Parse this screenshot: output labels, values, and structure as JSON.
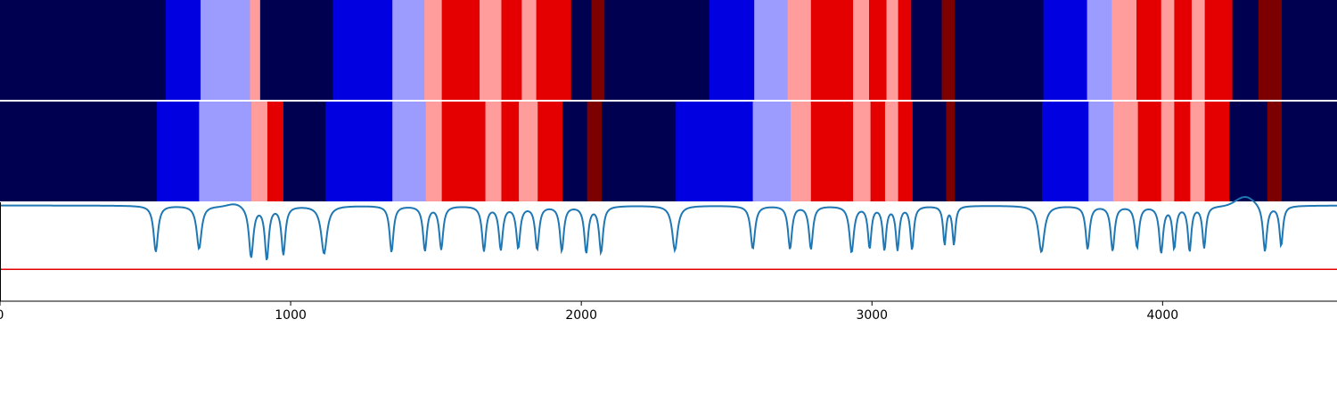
{
  "colors": {
    "dark_navy": "#000050",
    "blue": "#0000e0",
    "light_blue": "#9c9cff",
    "light_red": "#ff9c9c",
    "red": "#e40000",
    "dark_red": "#7c0000",
    "line": "#1f77b4",
    "threshold": "#e00000"
  },
  "chart_data": {
    "type": "heatmap",
    "xlim": [
      0,
      4600
    ],
    "x_ticks": [
      0,
      1000,
      2000,
      3000,
      4000
    ],
    "x_tick_labels": [
      "0",
      "1000",
      "2000",
      "3000",
      "4000"
    ],
    "legend": "none",
    "grid": false,
    "segment_tracks": [
      {
        "segments": [
          [
            0,
            570,
            "dark_navy"
          ],
          [
            570,
            690,
            "blue"
          ],
          [
            690,
            860,
            "light_blue"
          ],
          [
            860,
            895,
            "light_red"
          ],
          [
            895,
            1145,
            "dark_navy"
          ],
          [
            1145,
            1350,
            "blue"
          ],
          [
            1350,
            1460,
            "light_blue"
          ],
          [
            1460,
            1520,
            "light_red"
          ],
          [
            1520,
            1650,
            "red"
          ],
          [
            1650,
            1725,
            "light_red"
          ],
          [
            1725,
            1795,
            "red"
          ],
          [
            1795,
            1845,
            "light_red"
          ],
          [
            1845,
            1965,
            "red"
          ],
          [
            1965,
            2035,
            "dark_navy"
          ],
          [
            2035,
            2080,
            "dark_red"
          ],
          [
            2080,
            2440,
            "dark_navy"
          ],
          [
            2440,
            2595,
            "blue"
          ],
          [
            2595,
            2710,
            "light_blue"
          ],
          [
            2710,
            2790,
            "light_red"
          ],
          [
            2790,
            2935,
            "red"
          ],
          [
            2935,
            2990,
            "light_red"
          ],
          [
            2990,
            3050,
            "red"
          ],
          [
            3050,
            3090,
            "light_red"
          ],
          [
            3090,
            3135,
            "red"
          ],
          [
            3135,
            3240,
            "dark_navy"
          ],
          [
            3240,
            3285,
            "dark_red"
          ],
          [
            3285,
            3590,
            "dark_navy"
          ],
          [
            3590,
            3740,
            "blue"
          ],
          [
            3740,
            3825,
            "light_blue"
          ],
          [
            3825,
            3910,
            "light_red"
          ],
          [
            3910,
            3995,
            "red"
          ],
          [
            3995,
            4040,
            "light_red"
          ],
          [
            4040,
            4100,
            "red"
          ],
          [
            4100,
            4145,
            "light_red"
          ],
          [
            4145,
            4240,
            "red"
          ],
          [
            4240,
            4330,
            "dark_navy"
          ],
          [
            4330,
            4410,
            "dark_red"
          ],
          [
            4410,
            4600,
            "dark_navy"
          ]
        ]
      },
      {
        "segments": [
          [
            0,
            540,
            "dark_navy"
          ],
          [
            540,
            685,
            "blue"
          ],
          [
            685,
            865,
            "light_blue"
          ],
          [
            865,
            920,
            "light_red"
          ],
          [
            920,
            975,
            "red"
          ],
          [
            975,
            1120,
            "dark_navy"
          ],
          [
            1120,
            1350,
            "blue"
          ],
          [
            1350,
            1465,
            "light_blue"
          ],
          [
            1465,
            1520,
            "light_red"
          ],
          [
            1520,
            1670,
            "red"
          ],
          [
            1670,
            1725,
            "light_red"
          ],
          [
            1725,
            1785,
            "red"
          ],
          [
            1785,
            1850,
            "light_red"
          ],
          [
            1850,
            1935,
            "red"
          ],
          [
            1935,
            2020,
            "dark_navy"
          ],
          [
            2020,
            2070,
            "dark_red"
          ],
          [
            2070,
            2325,
            "dark_navy"
          ],
          [
            2325,
            2590,
            "blue"
          ],
          [
            2590,
            2720,
            "light_blue"
          ],
          [
            2720,
            2790,
            "light_red"
          ],
          [
            2790,
            2935,
            "red"
          ],
          [
            2935,
            2995,
            "light_red"
          ],
          [
            2995,
            3045,
            "red"
          ],
          [
            3045,
            3090,
            "light_red"
          ],
          [
            3090,
            3140,
            "red"
          ],
          [
            3140,
            3255,
            "dark_navy"
          ],
          [
            3255,
            3285,
            "dark_red"
          ],
          [
            3285,
            3585,
            "dark_navy"
          ],
          [
            3585,
            3745,
            "blue"
          ],
          [
            3745,
            3830,
            "light_blue"
          ],
          [
            3830,
            3915,
            "light_red"
          ],
          [
            3915,
            3995,
            "red"
          ],
          [
            3995,
            4040,
            "light_red"
          ],
          [
            4040,
            4095,
            "red"
          ],
          [
            4095,
            4145,
            "light_red"
          ],
          [
            4145,
            4230,
            "red"
          ],
          [
            4230,
            4360,
            "dark_navy"
          ],
          [
            4360,
            4410,
            "dark_red"
          ],
          [
            4410,
            4600,
            "dark_navy"
          ]
        ]
      }
    ],
    "line_series": {
      "ylim": [
        -3,
        0.1
      ],
      "baseline": 0,
      "threshold": -2.0,
      "dips": [
        [
          536,
          1.45,
          9
        ],
        [
          685,
          1.35,
          10
        ],
        [
          864,
          1.6,
          9
        ],
        [
          918,
          1.65,
          8
        ],
        [
          975,
          1.5,
          8
        ],
        [
          1115,
          1.5,
          12
        ],
        [
          1347,
          1.45,
          8
        ],
        [
          1462,
          1.4,
          8
        ],
        [
          1518,
          1.35,
          8
        ],
        [
          1665,
          1.4,
          8
        ],
        [
          1723,
          1.35,
          8
        ],
        [
          1783,
          1.3,
          8
        ],
        [
          1848,
          1.35,
          8
        ],
        [
          1933,
          1.4,
          8
        ],
        [
          2017,
          1.45,
          8
        ],
        [
          2068,
          1.45,
          8
        ],
        [
          2322,
          1.4,
          11
        ],
        [
          2590,
          1.35,
          9
        ],
        [
          2718,
          1.35,
          8
        ],
        [
          2790,
          1.35,
          8
        ],
        [
          2930,
          1.45,
          9
        ],
        [
          2992,
          1.3,
          7
        ],
        [
          3043,
          1.35,
          7
        ],
        [
          3088,
          1.35,
          7
        ],
        [
          3138,
          1.35,
          7
        ],
        [
          3250,
          1.2,
          6
        ],
        [
          3282,
          1.2,
          6
        ],
        [
          3583,
          1.45,
          12
        ],
        [
          3742,
          1.35,
          8
        ],
        [
          3828,
          1.4,
          8
        ],
        [
          3912,
          1.3,
          8
        ],
        [
          3995,
          1.45,
          8
        ],
        [
          4040,
          1.3,
          7
        ],
        [
          4093,
          1.4,
          7
        ],
        [
          4143,
          1.3,
          7
        ],
        [
          4352,
          1.45,
          8
        ],
        [
          4408,
          1.25,
          7
        ]
      ],
      "bumps": [
        [
          810,
          -0.1,
          35
        ],
        [
          4285,
          -0.3,
          45
        ]
      ],
      "hump_region": [
        4240,
        4320,
        1.6
      ]
    }
  }
}
